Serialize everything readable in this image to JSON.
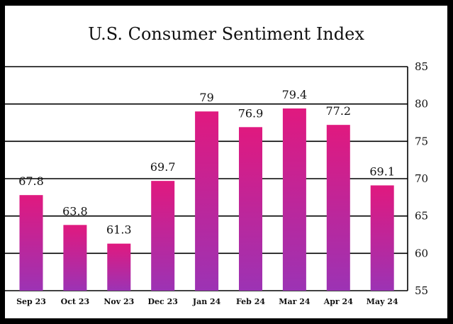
{
  "chart_data": {
    "type": "bar",
    "title": "U.S. Consumer Sentiment Index",
    "categories": [
      "Sep 23",
      "Oct 23",
      "Nov 23",
      "Dec 23",
      "Jan 24",
      "Feb 24",
      "Mar 24",
      "Apr 24",
      "May 24"
    ],
    "values": [
      67.8,
      63.8,
      61.3,
      69.7,
      79,
      76.9,
      79.4,
      77.2,
      69.1
    ],
    "data_labels": [
      "67.8",
      "63.8",
      "61.3",
      "69.7",
      "79",
      "76.9",
      "79.4",
      "77.2",
      "69.1"
    ],
    "ylim": [
      55,
      85
    ],
    "yticks": [
      55,
      60,
      65,
      70,
      75,
      80,
      85
    ],
    "y_axis_side": "right",
    "grid": true,
    "xlabel": "",
    "ylabel": "",
    "colors": {
      "bar_top": "#e0197f",
      "bar_bottom": "#9c33b4",
      "frame": "#000000"
    }
  }
}
